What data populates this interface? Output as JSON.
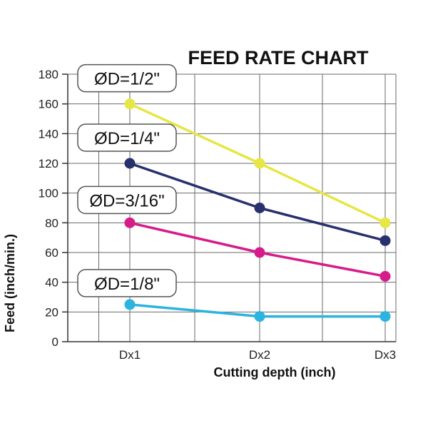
{
  "chart_data": {
    "type": "line",
    "title": "FEED RATE CHART",
    "xlabel": "Cutting depth (inch)",
    "ylabel": "Feed (inch/min.)",
    "categories": [
      "Dx1",
      "Dx2",
      "Dx3"
    ],
    "ylim": [
      0,
      180
    ],
    "yticks": [
      0,
      20,
      40,
      60,
      80,
      100,
      120,
      140,
      160,
      180
    ],
    "grid": true,
    "series": [
      {
        "name": "ØD=1/2\"",
        "values": [
          160,
          120,
          80
        ],
        "color": "#e6e645"
      },
      {
        "name": "ØD=1/4\"",
        "values": [
          120,
          90,
          68
        ],
        "color": "#28306e"
      },
      {
        "name": "ØD=3/16\"",
        "values": [
          80,
          60,
          44
        ],
        "color": "#d61c8a"
      },
      {
        "name": "ØD=1/8\"",
        "values": [
          25,
          17,
          17
        ],
        "color": "#2bb4e0"
      }
    ]
  }
}
